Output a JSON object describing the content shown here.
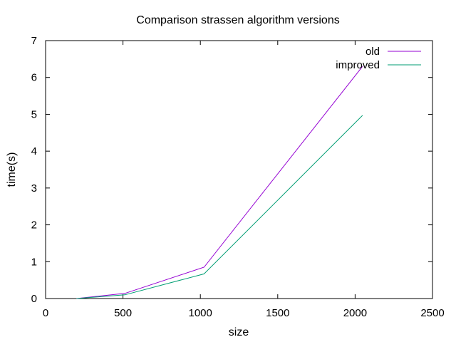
{
  "chart_data": {
    "type": "line",
    "title": "Comparison strassen algorithm versions",
    "xlabel": "size",
    "ylabel": "time(s)",
    "xlim": [
      0,
      2500
    ],
    "ylim": [
      0,
      7
    ],
    "xticks": [
      0,
      500,
      1000,
      1500,
      2000,
      2500
    ],
    "yticks": [
      0,
      1,
      2,
      3,
      4,
      5,
      6,
      7
    ],
    "grid": false,
    "legend_position": "top-right",
    "series": [
      {
        "name": "old",
        "color": "#9400d3",
        "x": [
          200,
          512,
          1024,
          2048
        ],
        "y": [
          0.0,
          0.14,
          0.85,
          6.3
        ]
      },
      {
        "name": "improved",
        "color": "#009e73",
        "x": [
          200,
          512,
          1024,
          2048
        ],
        "y": [
          0.0,
          0.1,
          0.67,
          4.97
        ]
      }
    ]
  }
}
